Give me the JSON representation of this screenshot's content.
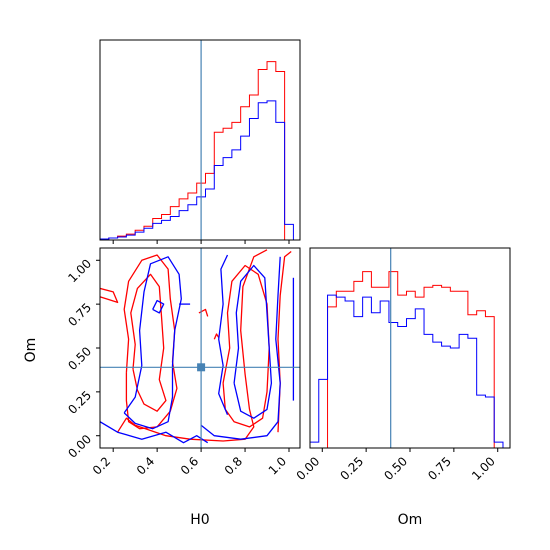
{
  "chart_data": {
    "type": "corner",
    "parameters": [
      "H0",
      "Om"
    ],
    "axis_labels": {
      "x_left": "H0",
      "x_right": "Om",
      "y_bottom_left": "Om"
    },
    "truths": {
      "H0": 0.6,
      "Om": 0.39
    },
    "truth_color": "#4682b4",
    "series_colors": {
      "red": "#ff0000",
      "blue": "#0000ff"
    },
    "ticks": {
      "H0": {
        "values": [
          0.2,
          0.4,
          0.6,
          0.8,
          1.0
        ],
        "labels": [
          "0.2",
          "0.4",
          "0.6",
          "0.8",
          "1.0"
        ]
      },
      "Om": {
        "values": [
          0.0,
          0.25,
          0.5,
          0.75,
          1.0
        ],
        "labels": [
          "0.00",
          "0.25",
          "0.50",
          "0.75",
          "1.00"
        ]
      }
    },
    "ranges": {
      "H0": [
        0.14,
        1.05
      ],
      "Om": [
        -0.07,
        1.07
      ]
    },
    "hist_H0": {
      "edges": [
        0.14,
        0.18,
        0.22,
        0.26,
        0.3,
        0.34,
        0.38,
        0.42,
        0.46,
        0.5,
        0.54,
        0.58,
        0.62,
        0.66,
        0.7,
        0.74,
        0.78,
        0.82,
        0.86,
        0.9,
        0.94,
        0.98,
        1.02
      ],
      "red": [
        0.005,
        0.01,
        0.02,
        0.03,
        0.05,
        0.07,
        0.11,
        0.13,
        0.17,
        0.21,
        0.24,
        0.29,
        0.34,
        0.55,
        0.57,
        0.6,
        0.68,
        0.74,
        0.87,
        0.91,
        0.86,
        0.0
      ],
      "blue": [
        0.005,
        0.01,
        0.015,
        0.025,
        0.04,
        0.06,
        0.085,
        0.1,
        0.12,
        0.15,
        0.18,
        0.22,
        0.26,
        0.38,
        0.42,
        0.46,
        0.53,
        0.62,
        0.7,
        0.71,
        0.6,
        0.08
      ]
    },
    "hist_Om": {
      "edges": [
        -0.07,
        -0.02,
        0.03,
        0.08,
        0.13,
        0.18,
        0.23,
        0.28,
        0.33,
        0.38,
        0.43,
        0.48,
        0.53,
        0.58,
        0.63,
        0.68,
        0.73,
        0.78,
        0.83,
        0.88,
        0.93,
        0.98,
        1.03
      ],
      "red": [
        0.0,
        0.0,
        0.72,
        0.8,
        0.8,
        0.85,
        0.9,
        0.82,
        0.82,
        0.9,
        0.78,
        0.8,
        0.77,
        0.82,
        0.83,
        0.82,
        0.8,
        0.8,
        0.68,
        0.7,
        0.67,
        0.0
      ],
      "blue": [
        0.03,
        0.35,
        0.78,
        0.77,
        0.75,
        0.67,
        0.77,
        0.69,
        0.75,
        0.64,
        0.62,
        0.66,
        0.71,
        0.58,
        0.54,
        0.52,
        0.51,
        0.58,
        0.56,
        0.27,
        0.26,
        0.03
      ]
    },
    "contours_2d": {
      "red": [
        [
          [
            0.29,
            0.38
          ],
          [
            0.3,
            0.52
          ],
          [
            0.28,
            0.7
          ],
          [
            0.31,
            0.84
          ],
          [
            0.37,
            0.92
          ],
          [
            0.41,
            0.85
          ],
          [
            0.42,
            0.68
          ],
          [
            0.43,
            0.5
          ],
          [
            0.41,
            0.32
          ],
          [
            0.44,
            0.2
          ],
          [
            0.4,
            0.14
          ],
          [
            0.34,
            0.18
          ],
          [
            0.31,
            0.26
          ],
          [
            0.29,
            0.38
          ]
        ],
        [
          [
            0.26,
            0.36
          ],
          [
            0.27,
            0.55
          ],
          [
            0.25,
            0.72
          ],
          [
            0.27,
            0.88
          ],
          [
            0.33,
            1.0
          ],
          [
            0.4,
            1.03
          ],
          [
            0.45,
            0.95
          ],
          [
            0.46,
            0.78
          ],
          [
            0.48,
            0.6
          ],
          [
            0.47,
            0.42
          ],
          [
            0.49,
            0.27
          ],
          [
            0.46,
            0.14
          ],
          [
            0.4,
            0.05
          ],
          [
            0.32,
            0.04
          ],
          [
            0.27,
            0.08
          ],
          [
            0.26,
            0.2
          ],
          [
            0.26,
            0.36
          ]
        ],
        [
          [
            0.22,
            0.02
          ],
          [
            0.26,
            0.1
          ],
          [
            0.3,
            0.06
          ],
          [
            0.44,
            0.0
          ],
          [
            0.55,
            -0.02
          ],
          [
            0.7,
            -0.03
          ],
          [
            0.8,
            -0.02
          ],
          [
            0.84,
            0.05
          ],
          [
            0.82,
            0.15
          ],
          [
            0.8,
            0.35
          ],
          [
            0.78,
            0.6
          ],
          [
            0.79,
            0.85
          ],
          [
            0.84,
            1.02
          ],
          [
            0.9,
            1.06
          ]
        ],
        [
          [
            0.7,
            0.3
          ],
          [
            0.73,
            0.5
          ],
          [
            0.72,
            0.7
          ],
          [
            0.74,
            0.88
          ],
          [
            0.8,
            0.97
          ],
          [
            0.86,
            0.92
          ],
          [
            0.9,
            0.75
          ],
          [
            0.91,
            0.5
          ],
          [
            0.9,
            0.25
          ],
          [
            0.88,
            0.1
          ],
          [
            0.82,
            0.05
          ],
          [
            0.75,
            0.08
          ],
          [
            0.71,
            0.15
          ],
          [
            0.7,
            0.3
          ]
        ],
        [
          [
            0.95,
            0.02
          ],
          [
            0.96,
            0.3
          ],
          [
            0.95,
            0.55
          ],
          [
            0.96,
            0.8
          ],
          [
            0.98,
            1.02
          ],
          [
            1.01,
            1.05
          ]
        ],
        [
          [
            0.12,
            0.8
          ],
          [
            0.17,
            0.78
          ],
          [
            0.22,
            0.76
          ],
          [
            0.2,
            0.82
          ],
          [
            0.14,
            0.84
          ],
          [
            0.12,
            0.8
          ]
        ],
        [
          [
            0.59,
            0.7
          ],
          [
            0.62,
            0.72
          ],
          [
            0.63,
            0.68
          ]
        ],
        [
          [
            0.66,
            0.55
          ],
          [
            0.67,
            0.58
          ],
          [
            0.68,
            0.56
          ]
        ]
      ],
      "blue": [
        [
          [
            0.25,
            0.13
          ],
          [
            0.3,
            0.22
          ],
          [
            0.33,
            0.4
          ],
          [
            0.32,
            0.6
          ],
          [
            0.34,
            0.82
          ],
          [
            0.37,
            0.98
          ],
          [
            0.45,
            1.02
          ],
          [
            0.5,
            0.92
          ],
          [
            0.51,
            0.78
          ],
          [
            0.48,
            0.6
          ],
          [
            0.47,
            0.4
          ],
          [
            0.47,
            0.22
          ],
          [
            0.45,
            0.08
          ],
          [
            0.38,
            0.04
          ],
          [
            0.3,
            0.07
          ],
          [
            0.25,
            0.13
          ]
        ],
        [
          [
            0.14,
            0.08
          ],
          [
            0.22,
            0.02
          ],
          [
            0.33,
            -0.02
          ],
          [
            0.44,
            0.02
          ],
          [
            0.52,
            -0.04
          ],
          [
            0.58,
            0.0
          ],
          [
            0.63,
            -0.04
          ]
        ],
        [
          [
            0.75,
            0.3
          ],
          [
            0.77,
            0.5
          ],
          [
            0.76,
            0.7
          ],
          [
            0.78,
            0.88
          ],
          [
            0.84,
            0.97
          ],
          [
            0.89,
            0.9
          ],
          [
            0.9,
            0.7
          ],
          [
            0.91,
            0.5
          ],
          [
            0.92,
            0.3
          ],
          [
            0.9,
            0.15
          ],
          [
            0.84,
            0.1
          ],
          [
            0.78,
            0.14
          ],
          [
            0.75,
            0.3
          ]
        ],
        [
          [
            0.6,
            0.06
          ],
          [
            0.66,
            0.0
          ],
          [
            0.78,
            -0.02
          ],
          [
            0.9,
            0.0
          ],
          [
            0.95,
            0.08
          ],
          [
            0.96,
            0.3
          ],
          [
            0.94,
            0.55
          ],
          [
            0.95,
            0.8
          ],
          [
            0.96,
            1.02
          ]
        ],
        [
          [
            0.72,
            0.12
          ],
          [
            0.68,
            0.24
          ],
          [
            0.7,
            0.4
          ],
          [
            0.68,
            0.55
          ],
          [
            0.7,
            0.75
          ],
          [
            0.69,
            0.95
          ],
          [
            0.72,
            1.03
          ]
        ],
        [
          [
            0.38,
            0.72
          ],
          [
            0.41,
            0.7
          ],
          [
            0.43,
            0.75
          ],
          [
            0.4,
            0.77
          ],
          [
            0.38,
            0.72
          ]
        ],
        [
          [
            0.5,
            0.75
          ],
          [
            0.55,
            0.75
          ]
        ],
        [
          [
            1.02,
            0.2
          ],
          [
            1.02,
            0.9
          ]
        ]
      ]
    }
  }
}
